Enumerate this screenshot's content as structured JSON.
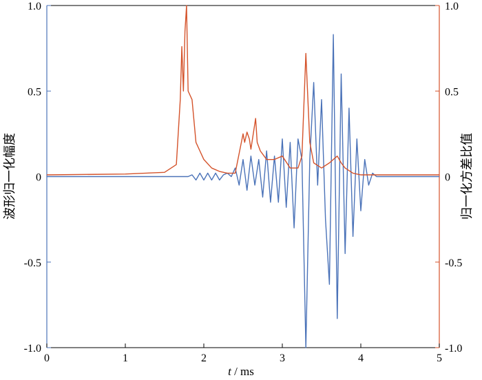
{
  "chart_data": {
    "type": "line",
    "title": "",
    "xlabel_italic": "t",
    "xlabel_unit": " / ms",
    "ylabel_left": "波形归一化幅度",
    "ylabel_right": "归一化方差比值",
    "xlim": [
      0,
      5
    ],
    "ylim_left": [
      -1.0,
      1.0
    ],
    "ylim_right": [
      -1.0,
      1.0
    ],
    "x_ticks": [
      "0",
      "1",
      "2",
      "3",
      "4",
      "5"
    ],
    "y_ticks_left": [
      "1.0",
      "0.5",
      "0",
      "-0.5",
      "-1.0"
    ],
    "y_ticks_right": [
      "1.0",
      "0.5",
      "0",
      "-0.5",
      "-1.0"
    ],
    "grid": false,
    "legend": "none",
    "colors": {
      "waveform": "#4a72b8",
      "variance": "#d4522a",
      "axis": "#000000"
    },
    "series": [
      {
        "key": "waveform",
        "axis": "left",
        "x": [
          0,
          1.7,
          1.75,
          1.8,
          1.85,
          1.9,
          1.95,
          2.0,
          2.05,
          2.1,
          2.15,
          2.2,
          2.25,
          2.3,
          2.35,
          2.4,
          2.45,
          2.5,
          2.55,
          2.6,
          2.65,
          2.7,
          2.75,
          2.8,
          2.85,
          2.9,
          2.95,
          3.0,
          3.05,
          3.1,
          3.15,
          3.2,
          3.25,
          3.3,
          3.35,
          3.4,
          3.45,
          3.5,
          3.55,
          3.6,
          3.65,
          3.7,
          3.75,
          3.8,
          3.85,
          3.9,
          3.95,
          4.0,
          4.05,
          4.1,
          4.15,
          4.2,
          5.0
        ],
        "y": [
          0,
          0,
          0,
          0,
          0.01,
          -0.02,
          0.02,
          -0.02,
          0.02,
          -0.02,
          0.02,
          -0.02,
          0.01,
          0.02,
          0,
          0.05,
          -0.05,
          0.1,
          -0.08,
          0.12,
          -0.05,
          0.1,
          -0.12,
          0.15,
          -0.15,
          0.12,
          -0.15,
          0.22,
          -0.18,
          0.2,
          -0.3,
          0.22,
          0.1,
          -1.0,
          0.1,
          0.55,
          -0.05,
          0.45,
          -0.25,
          -0.63,
          0.83,
          -0.83,
          0.6,
          -0.45,
          0.4,
          -0.35,
          0.22,
          -0.2,
          0.1,
          -0.05,
          0.02,
          0,
          0
        ]
      },
      {
        "key": "variance",
        "axis": "right",
        "x": [
          0,
          1.0,
          1.5,
          1.65,
          1.7,
          1.72,
          1.74,
          1.76,
          1.78,
          1.8,
          1.85,
          1.9,
          1.95,
          2.0,
          2.1,
          2.2,
          2.3,
          2.4,
          2.5,
          2.52,
          2.55,
          2.58,
          2.6,
          2.63,
          2.66,
          2.68,
          2.72,
          2.8,
          2.9,
          3.0,
          3.1,
          3.2,
          3.25,
          3.3,
          3.35,
          3.4,
          3.5,
          3.6,
          3.7,
          3.75,
          3.8,
          3.9,
          4.0,
          4.05,
          4.1,
          4.2,
          5.0
        ],
        "y": [
          0.01,
          0.015,
          0.025,
          0.07,
          0.45,
          0.76,
          0.5,
          0.85,
          1.0,
          0.5,
          0.45,
          0.2,
          0.15,
          0.1,
          0.05,
          0.03,
          0.02,
          0.02,
          0.25,
          0.2,
          0.26,
          0.22,
          0.16,
          0.25,
          0.34,
          0.2,
          0.15,
          0.1,
          0.1,
          0.12,
          0.05,
          0.05,
          0.12,
          0.72,
          0.2,
          0.08,
          0.05,
          0.08,
          0.12,
          0.08,
          0.05,
          0.02,
          0.01,
          0.01,
          0.01,
          0.01,
          0.01
        ]
      }
    ]
  }
}
